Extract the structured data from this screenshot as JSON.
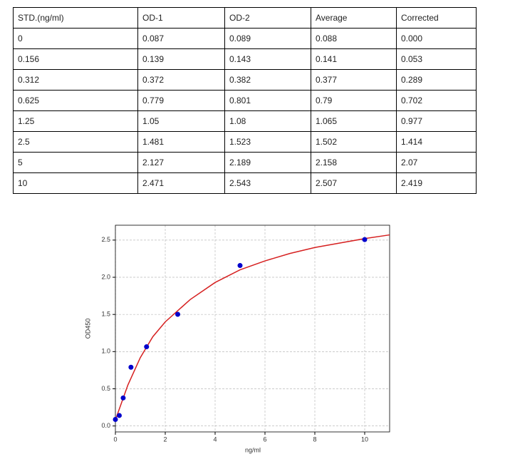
{
  "table": {
    "header": [
      "STD.(ng/ml)",
      "OD-1",
      "OD-2",
      "Average",
      "Corrected"
    ],
    "rows": [
      [
        "0",
        "0.087",
        "0.089",
        "0.088",
        "0.000"
      ],
      [
        "0.156",
        "0.139",
        "0.143",
        "0.141",
        "0.053"
      ],
      [
        "0.312",
        "0.372",
        "0.382",
        "0.377",
        "0.289"
      ],
      [
        "0.625",
        "0.779",
        "0.801",
        "0.79",
        "0.702"
      ],
      [
        "1.25",
        "1.05",
        "1.08",
        "1.065",
        "0.977"
      ],
      [
        "2.5",
        "1.481",
        "1.523",
        "1.502",
        "1.414"
      ],
      [
        "5",
        "2.127",
        "2.189",
        "2.158",
        "2.07"
      ],
      [
        "10",
        "2.471",
        "2.543",
        "2.507",
        "2.419"
      ]
    ]
  },
  "chart_data": {
    "type": "scatter",
    "xlabel": "ng/ml",
    "ylabel": "OD450",
    "xlim": [
      0,
      11
    ],
    "xticks": [
      0,
      2,
      4,
      6,
      8,
      10
    ],
    "ylim": [
      -0.08,
      2.7
    ],
    "yticks": [
      {
        "value": 0,
        "label": "0.0"
      },
      {
        "value": 0.5,
        "label": "0.5"
      },
      {
        "value": 1,
        "label": "1.0"
      },
      {
        "value": 1.5,
        "label": "1.5"
      },
      {
        "value": 2,
        "label": "2.0"
      },
      {
        "value": 2.5,
        "label": "2.5"
      }
    ],
    "grid": true,
    "series": [
      {
        "type": "line",
        "color": "#d62020",
        "x": [
          0,
          0.5,
          1,
          1.5,
          2,
          3,
          4,
          5,
          6,
          7,
          8,
          9,
          10,
          11
        ],
        "values": [
          0.08,
          0.55,
          0.92,
          1.2,
          1.4,
          1.7,
          1.93,
          2.1,
          2.22,
          2.32,
          2.4,
          2.46,
          2.52,
          2.57
        ]
      },
      {
        "type": "scatter",
        "color": "#0000cc",
        "x": [
          0,
          0.156,
          0.312,
          0.625,
          1.25,
          2.5,
          5,
          10
        ],
        "values": [
          0.088,
          0.141,
          0.377,
          0.79,
          1.065,
          1.502,
          2.158,
          2.507
        ]
      }
    ]
  }
}
